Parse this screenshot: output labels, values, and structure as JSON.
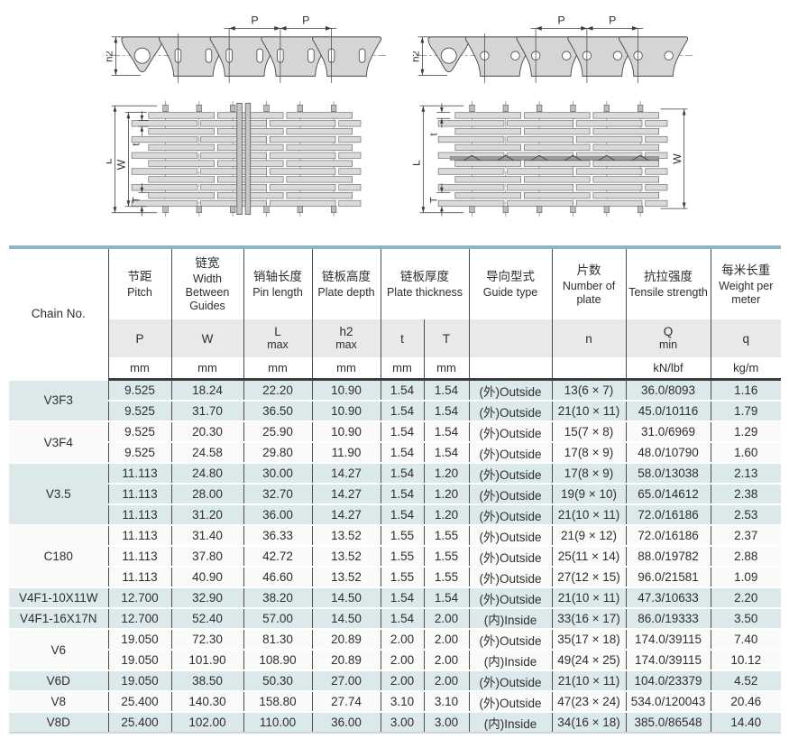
{
  "colors": {
    "row_shade": "#dbe9eb",
    "row_plain": "#fafaf8",
    "header_band": "#e9e9e9",
    "top_border": "#8cb6c1",
    "drawing_fill": "#d5d5d5",
    "drawing_line": "#4a4a4a"
  },
  "diagrams": {
    "side_left": {
      "p1": "P",
      "p2": "P",
      "h2": "h2"
    },
    "plan_left": {
      "L": "L",
      "W": "W",
      "t": "t",
      "T": "T"
    },
    "side_right": {
      "p1": "P",
      "p2": "P",
      "h2": "h2"
    },
    "plan_right": {
      "L": "L",
      "W": "W",
      "t": "t",
      "T": "T"
    }
  },
  "table": {
    "chain_no_label": "Chain No.",
    "columns": [
      {
        "cn": "节距",
        "en": "Pitch",
        "sym": "P",
        "sym2": "",
        "unit": "mm"
      },
      {
        "cn": "链宽",
        "en": "Width Between Guides",
        "sym": "W",
        "sym2": "",
        "unit": "mm"
      },
      {
        "cn": "销轴长度",
        "en": "Pin length",
        "sym": "L",
        "sym2": "max",
        "unit": "mm"
      },
      {
        "cn": "链板高度",
        "en": "Plate depth",
        "sym": "h2",
        "sym2": "max",
        "unit": "mm"
      },
      {
        "cn": "链板厚度",
        "en": "Plate thickness",
        "sub": [
          {
            "sym": "t",
            "unit": "mm"
          },
          {
            "sym": "T",
            "unit": "mm"
          }
        ]
      },
      {
        "cn": "导向型式",
        "en": "Guide type",
        "sym": "",
        "sym2": "",
        "unit": ""
      },
      {
        "cn": "片数",
        "en": "Number of plate",
        "sym": "n",
        "sym2": "",
        "unit": ""
      },
      {
        "cn": "抗拉强度",
        "en": "Tensile strength",
        "sym": "Q",
        "sym2": "min",
        "unit": "kN/lbf"
      },
      {
        "cn": "每米长重",
        "en": "Weight per meter",
        "sym": "q",
        "sym2": "",
        "unit": "kg/m"
      }
    ],
    "groups": [
      {
        "chain_no": "V3F3",
        "shaded": true,
        "rows": [
          [
            "9.525",
            "18.24",
            "22.20",
            "10.90",
            "1.54",
            "1.54",
            "(外)Outside",
            "13(6 × 7)",
            "36.0/8093",
            "1.16"
          ],
          [
            "9.525",
            "31.70",
            "36.50",
            "10.90",
            "1.54",
            "1.54",
            "(外)Outside",
            "21(10 × 11)",
            "45.0/10116",
            "1.79"
          ]
        ]
      },
      {
        "chain_no": "V3F4",
        "shaded": false,
        "rows": [
          [
            "9.525",
            "20.30",
            "25.90",
            "10.90",
            "1.54",
            "1.54",
            "(外)Outside",
            "15(7 × 8)",
            "31.0/6969",
            "1.29"
          ],
          [
            "9.525",
            "24.58",
            "29.80",
            "11.90",
            "1.54",
            "1.54",
            "(外)Outside",
            "17(8 × 9)",
            "48.0/10790",
            "1.60"
          ]
        ]
      },
      {
        "chain_no": "V3.5",
        "shaded": true,
        "rows": [
          [
            "11.113",
            "24.80",
            "30.00",
            "14.27",
            "1.54",
            "1.20",
            "(外)Outside",
            "17(8 × 9)",
            "58.0/13038",
            "2.13"
          ],
          [
            "11.113",
            "28.00",
            "32.70",
            "14.27",
            "1.54",
            "1.20",
            "(外)Outside",
            "19(9 × 10)",
            "65.0/14612",
            "2.38"
          ],
          [
            "11.113",
            "31.20",
            "36.00",
            "14.27",
            "1.54",
            "1.20",
            "(外)Outside",
            "21(10 × 11)",
            "72.0/16186",
            "2.53"
          ]
        ]
      },
      {
        "chain_no": "C180",
        "shaded": false,
        "rows": [
          [
            "11.113",
            "31.40",
            "36.33",
            "13.52",
            "1.55",
            "1.55",
            "(外)Outside",
            "21(9 × 12)",
            "72.0/16186",
            "2.37"
          ],
          [
            "11.113",
            "37.80",
            "42.72",
            "13.52",
            "1.55",
            "1.55",
            "(外)Outside",
            "25(11 × 14)",
            "88.0/19782",
            "2.88"
          ],
          [
            "11.113",
            "40.90",
            "46.60",
            "13.52",
            "1.55",
            "1.55",
            "(外)Outside",
            "27(12 × 15)",
            "96.0/21581",
            "1.09"
          ]
        ]
      },
      {
        "chain_no": "V4F1-10X11W",
        "shaded": true,
        "rows": [
          [
            "12.700",
            "32.90",
            "38.20",
            "14.50",
            "1.54",
            "1.54",
            "(外)Outside",
            "21(10 × 11)",
            "47.3/10633",
            "2.20"
          ]
        ]
      },
      {
        "chain_no": "V4F1-16X17N",
        "shaded": true,
        "rows": [
          [
            "12.700",
            "52.40",
            "57.00",
            "14.50",
            "1.54",
            "2.00",
            "(内)Inside",
            "33(16 × 17)",
            "86.0/19333",
            "3.50"
          ]
        ]
      },
      {
        "chain_no": "V6",
        "shaded": false,
        "rows": [
          [
            "19.050",
            "72.30",
            "81.30",
            "20.89",
            "2.00",
            "2.00",
            "(外)Outside",
            "35(17 × 18)",
            "174.0/39115",
            "7.40"
          ],
          [
            "19.050",
            "101.90",
            "108.90",
            "20.89",
            "2.00",
            "2.00",
            "(内)Inside",
            "49(24 × 25)",
            "174.0/39115",
            "10.12"
          ]
        ]
      },
      {
        "chain_no": "V6D",
        "shaded": true,
        "rows": [
          [
            "19.050",
            "38.50",
            "50.30",
            "27.00",
            "2.00",
            "2.00",
            "(外)Outside",
            "21(10 × 11)",
            "104.0/23379",
            "4.52"
          ]
        ]
      },
      {
        "chain_no": "V8",
        "shaded": false,
        "rows": [
          [
            "25.400",
            "140.30",
            "158.80",
            "27.74",
            "3.10",
            "3.10",
            "(外)Outside",
            "47(23 × 24)",
            "534.0/120043",
            "20.46"
          ]
        ]
      },
      {
        "chain_no": "V8D",
        "shaded": true,
        "rows": [
          [
            "25.400",
            "102.00",
            "110.00",
            "36.00",
            "3.00",
            "3.00",
            "(内)Inside",
            "34(16 × 18)",
            "385.0/86548",
            "14.40"
          ]
        ]
      }
    ]
  }
}
